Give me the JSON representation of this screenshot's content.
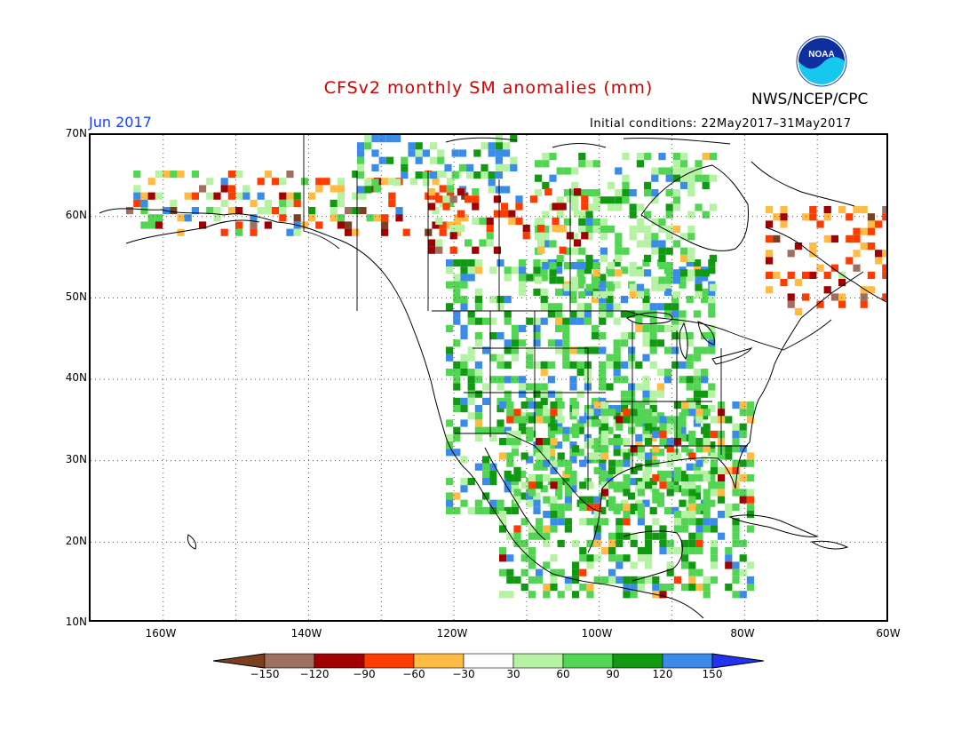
{
  "header": {
    "title": "CFSv2 monthly SM anomalies (mm)",
    "agency": "NWS/NCEP/CPC",
    "month": "Jun 2017",
    "initial_conditions": "Initial conditions: 22May2017–31May2017",
    "logo_text": "NOAA"
  },
  "map": {
    "projection": "lat-lon",
    "lon_range": [
      -170,
      -60
    ],
    "lat_range": [
      10,
      70
    ],
    "grid": true,
    "lat_labels": [
      "70N",
      "60N",
      "50N",
      "40N",
      "30N",
      "20N",
      "10N"
    ],
    "lon_labels": [
      "160W",
      "140W",
      "120W",
      "100W",
      "80W",
      "60W"
    ]
  },
  "colorbar": {
    "ticks": [
      "−150",
      "−120",
      "−90",
      "−60",
      "−30",
      "30",
      "60",
      "90",
      "120",
      "150"
    ],
    "colors": [
      "#7b3f1f",
      "#9e7060",
      "#a00000",
      "#ff3c00",
      "#ffbb44",
      "#ffffff",
      "#b6f2a4",
      "#52d552",
      "#119a11",
      "#3a8ce8",
      "#2233ee"
    ]
  }
}
